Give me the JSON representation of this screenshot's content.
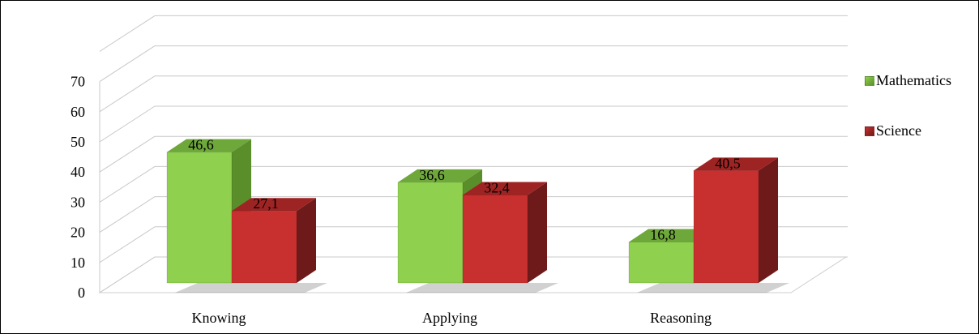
{
  "chart_data": {
    "type": "bar",
    "title": "",
    "xlabel": "",
    "ylabel": "",
    "categories": [
      "Knowing",
      "Applying",
      "Reasoning"
    ],
    "series": [
      {
        "name": "Mathematics",
        "values": [
          46.6,
          36.6,
          16.8
        ],
        "labels": [
          "46,6",
          "36,6",
          "16,8"
        ]
      },
      {
        "name": "Science",
        "values": [
          27.1,
          32.4,
          40.5
        ],
        "labels": [
          "27,1",
          "32,4",
          "40,5"
        ]
      }
    ],
    "ylim": [
      0,
      70
    ],
    "yticks": [
      "0",
      "10",
      "20",
      "30",
      "40",
      "50",
      "60",
      "70"
    ],
    "grid": true,
    "style": "3d-clustered-column",
    "legend_position": "right",
    "colors": {
      "Mathematics": {
        "front": "#8fd14f",
        "side": "#5a8e2a",
        "top": "#6ea73a"
      },
      "Science": {
        "front": "#c8302f",
        "side": "#6e1a1a",
        "top": "#9e2424"
      },
      "grid": "#d0d0d0"
    }
  }
}
